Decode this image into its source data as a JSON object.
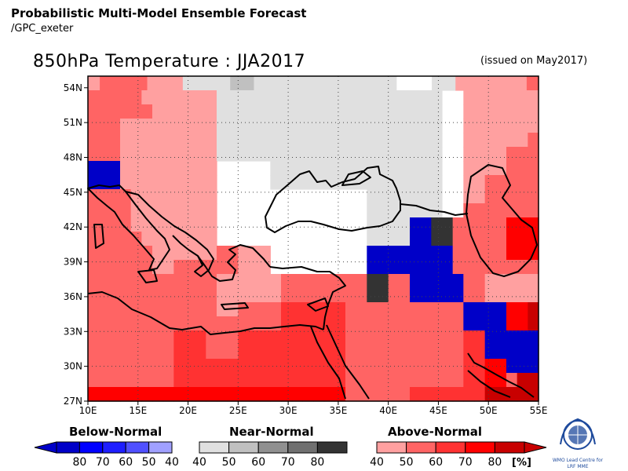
{
  "header": {
    "title": "Probabilistic Multi-Model Ensemble Forecast",
    "subtitle": "/GPC_exeter",
    "map_title": "850hPa Temperature : JJA2017",
    "issued": "(issued on May2017)"
  },
  "map": {
    "lon_ticks": [
      "10E",
      "15E",
      "20E",
      "25E",
      "30E",
      "35E",
      "40E",
      "45E",
      "50E",
      "55E"
    ],
    "lat_ticks": [
      "54N",
      "51N",
      "48N",
      "45N",
      "42N",
      "39N",
      "36N",
      "33N",
      "30N",
      "27N"
    ],
    "lon_range": [
      10,
      55
    ],
    "lat_range": [
      27,
      55
    ],
    "grid": "dotted",
    "colors": {
      "0": "#ffffff",
      "a4": "#ffa0a0",
      "a5": "#ff6464",
      "a6": "#ff3232",
      "a7": "#ff0000",
      "a8": "#c80000",
      "b4": "#a0a0ff",
      "b5": "#5050ff",
      "b6": "#2828ff",
      "b7": "#0000e0",
      "b8": "#0000c8",
      "n4": "#e0e0e0",
      "n5": "#c0c0c0",
      "n6": "#a0a0a0",
      "n7": "#707070",
      "n8": "#333333"
    },
    "grid_cells": [
      "a4 a5 a5 a5 a5 a4 a4 a4 n4 n4 n4 n4 n5 n5 n4 n4 n4 n4 n4 n4 n4 n4 n4 n4 n4 n4 0 0 0 n4 n4 a4 a4 a4 a4 a4 a4 a5",
      "a5 a5 a5 a5 a5 a4 a4 a4 a4 a4 a4 a4 n4 n4 n4 n4 n4 n4 n4 n4 n4 n4 n4 n4 n4 n4 n4 n4 n4 n4 n4 n4 n4 0 0 a4 a4 a4 a4 a4 a4 a4",
      "a5 a5 a5 a5 a5 a5 a4 a4 a4 a4 a4 a4 n4 n4 n4 n4 n4 n4 n4 n4 n4 n4 n4 n4 n4 n4 n4 n4 n4 n4 n4 n4 n4 0 0 a4 a4 a4 a4 a4 a4 a4",
      "a5 a5 a5 a4 a4 a4 a4 a4 a4 a4 a4 a4 n4 n4 n4 n4 n4 n4 n4 n4 n4 n4 n4 n4 n4 n4 n4 n4 n4 n4 n4 n4 n4 0 0 a4 a4 a4 a4 a4 a4 a4",
      "a5 a5 a5 a4 a4 a4 a4 a4 a4 a4 a4 a4 n4 n4 n4 n4 n4 n4 n4 n4 n4 n4 n4 n4 n4 n4 n4 n4 n4 n4 n4 n4 n4 0 0 a4 a4 a4 a4 a4 a4 a5",
      "a5 a5 a5 a4 a4 a4 a4 a4 a4 a4 a4 a4 n4 n4 n4 n4 n4 n4 n4 n4 n4 n4 n4 n4 n4 n4 n4 n4 n4 n4 n4 n4 n4 0 0 a4 a4 a4 a4 a5 a5 a5",
      "b8 b8 b8 a4 a4 a4 a4 a4 a4 a4 a4 a4 0 0 0 0 0 n4 n4 n4 n4 n4 n4 n4 n4 n4 n4 n4 n4 n4 n4 n4 n4 0 0 a4 a4 a4 a4 a5 a5 a5",
      "b8 b8 b8 a4 a4 a4 a4 a4 a4 a4 a4 a4 0 0 0 0 0 n4 n4 n4 n4 n4 n4 n4 n4 n4 n4 n4 n4 n4 n4 n4 n4 0 0 a4 a4 a5 a5 a5 a5 a5",
      "a5 a5 a5 a5 a4 a4 a4 a4 a4 a4 a4 a4 0 0 0 0 0 0 0 0 0 0 0 0 0 0 n4 n4 n4 n4 n4 n4 n4 0 0 a4 a4 a5 a5 a5 a5 a5",
      "a5 a5 a5 a5 a4 a4 a4 a4 a4 a4 a4 a4 0 0 0 0 0 0 0 0 0 0 0 0 0 0 n4 n4 n4 n4 n4 n4 n4 0 0 a5 a5 a5 a5 a5 a5 a5",
      "a5 a5 a5 a5 a4 a4 a4 a4 a4 a4 a4 a4 0 0 0 0 0 0 0 0 0 0 0 0 0 0 n4 n4 n4 n4 b8 b8 n8 n8 a5 a5 a5 a5 a5 a7 a7 a7",
      "a5 a5 a5 a5 a5 a4 a4 a4 a4 a4 a4 a4 0 0 0 0 0 0 0 0 0 0 0 0 0 0 n4 n4 n4 n4 b8 b8 n8 n8 a5 a5 a5 a5 a5 a7 a7 a7",
      "a5 a5 a5 a5 a5 a5 a4 a4 a4 a4 a4 a4 a5 a5 a4 a4 a4 0 0 0 0 0 0 0 0 0 b8 b8 b8 b8 b8 b8 b8 b8 a5 a5 a5 a5 a5 a7 a7 a7",
      "a5 a5 a5 a5 a5 a5 a4 a4 a5 a5 a5 a5 a5 a5 a4 a4 a4 0 0 0 0 0 0 0 0 0 b8 b8 b8 b8 b8 b8 b8 b8 a5 a5 a5 a5 a5 a5 a5 a5",
      "a5 a5 a5 a5 a5 a5 a5 a5 a5 a5 a5 a5 a4 a4 a4 a4 a4 a4 a5 a5 a5 a5 a5 a5 a5 a5 n8 n8 a5 a5 b8 b8 b8 b8 b8 a5 a5 a4 a4 a4 a4 a4",
      "a5 a5 a5 a5 a5 a5 a5 a5 a5 a5 a5 a5 a4 a4 a4 a4 a4 a4 a5 a5 a5 a5 a5 a5 a5 a5 n8 n8 a5 a5 b8 b8 b8 b8 b8 a5 a5 a4 a4 a4 a4 a4",
      "a5 a5 a5 a5 a5 a5 a5 a5 a5 a5 a5 a5 a4 a4 a5 a5 a5 a5 a6 a6 a6 a6 a6 a6 a5 a5 a5 a5 a5 a5 a5 a5 a5 a5 a5 b8 b8 b8 b8 a7 a7 a8",
      "a5 a5 a5 a5 a5 a5 a5 a5 a5 a5 a5 a5 a5 a5 a5 a5 a5 a5 a6 a6 a6 a6 a6 a6 a5 a5 a5 a5 a5 a5 a5 a5 a5 a5 a5 b8 b8 b8 b8 a7 a7 a8",
      "a5 a5 a5 a5 a5 a5 a5 a5 a6 a6 a6 a5 a5 a5 a6 a6 a6 a6 a6 a6 a6 a6 a6 a6 a5 a5 a5 a5 a5 a5 a5 a5 a5 a5 a5 a6 a6 b8 b8 b8 b8 b8",
      "a5 a5 a5 a5 a5 a5 a5 a5 a6 a6 a6 a5 a5 a5 a6 a6 a6 a6 a6 a6 a6 a6 a6 a6 a5 a5 a5 a5 a5 a5 a5 a5 a5 a5 a5 a6 a6 b8 b8 b8 b8 b8",
      "a5 a5 a5 a5 a5 a5 a5 a5 a6 a6 a6 a6 a6 a6 a6 a6 a6 a6 a6 a6 a6 a6 a6 a6 a5 a5 a5 a5 a5 a5 a5 a5 a5 a5 a5 a6 a6 a7 a7 b8 b8 b8",
      "a5 a5 a5 a5 a5 a5 a5 a5 a6 a6 a6 a6 a6 a6 a6 a6 a6 a6 a6 a6 a6 a6 a6 a6 a5 a5 a5 a5 a5 a5 a5 a5 a5 a5 a5 a6 a6 a7 a7 a5 a8 a8",
      "a7 a7 a7 a7 a7 a7 a7 a7 a7 a7 a7 a7 a7 a7 a7 a7 a7 a7 a7 a7 a7 a7 a7 a7 a5 a5 a5 a5 a5 a5 a6 a6 a6 a6 a6 a6 a6 a8 a8 a8 a8 a8"
    ]
  },
  "legend": {
    "below": {
      "title": "Below-Normal",
      "labels": [
        "80",
        "70",
        "60",
        "50",
        "40"
      ],
      "colors": [
        "#0000c8",
        "#0000ff",
        "#1e1eff",
        "#5050ff",
        "#a0a0ff"
      ]
    },
    "near": {
      "title": "Near-Normal",
      "labels": [
        "40",
        "50",
        "60",
        "70",
        "80"
      ],
      "colors": [
        "#e0e0e0",
        "#c0c0c0",
        "#909090",
        "#707070",
        "#333333"
      ]
    },
    "above": {
      "title": "Above-Normal",
      "labels": [
        "40",
        "50",
        "60",
        "70",
        "80"
      ],
      "colors": [
        "#ffa0a0",
        "#ff6464",
        "#ff3232",
        "#ff0000",
        "#c80000"
      ]
    },
    "unit": "[%]"
  },
  "logo": {
    "caption_line1": "WMO Lead Centre for",
    "caption_line2": "LRF MME"
  }
}
